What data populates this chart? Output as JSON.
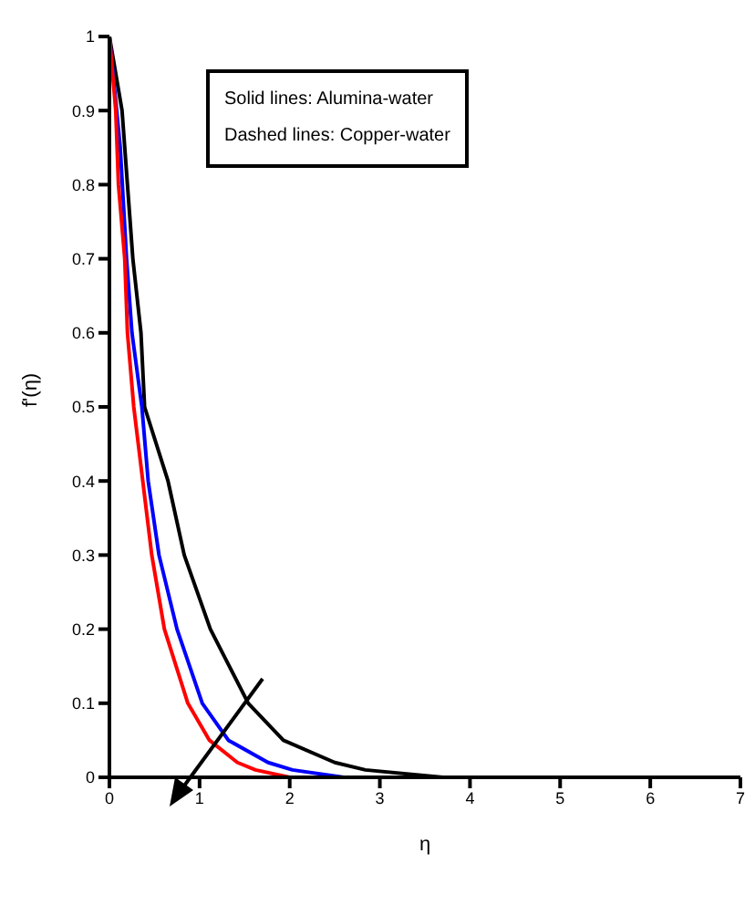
{
  "chart_data": {
    "type": "line",
    "xlabel": "η",
    "ylabel": "f'(η)",
    "annotations": [
      "Solid lines: Alumina-water",
      "Dashed lines: Copper-water"
    ],
    "xlim": [
      0,
      7
    ],
    "xticks": [
      0,
      1,
      2,
      3,
      4,
      5,
      6,
      7
    ],
    "ylim": [
      0,
      1
    ],
    "yticks": [
      0,
      0.1,
      0.2,
      0.3,
      0.4,
      0.5,
      0.6,
      0.7,
      0.8,
      0.9,
      1
    ],
    "marker": "none",
    "line_style": "solid",
    "series": [
      {
        "color": "#000000",
        "x": [
          0,
          0.14,
          0.2,
          0.26,
          0.35,
          0.39,
          0.65,
          0.83,
          1.12,
          1.54,
          1.93,
          2.5,
          2.84,
          3.7,
          7
        ],
        "values": [
          1,
          0.9,
          0.8,
          0.7,
          0.6,
          0.5,
          0.4,
          0.3,
          0.2,
          0.1,
          0.05,
          0.02,
          0.01,
          0,
          0
        ]
      },
      {
        "color": "#0000ff",
        "x": [
          0,
          0.12,
          0.19,
          0.25,
          0.36,
          0.43,
          0.55,
          0.75,
          1.03,
          1.32,
          1.76,
          2.03,
          2.6,
          7
        ],
        "values": [
          1,
          0.85,
          0.7,
          0.6,
          0.5,
          0.4,
          0.3,
          0.2,
          0.1,
          0.05,
          0.02,
          0.01,
          0,
          0
        ]
      },
      {
        "color": "#ff0000",
        "x": [
          0,
          0.07,
          0.1,
          0.17,
          0.2,
          0.27,
          0.37,
          0.47,
          0.61,
          0.87,
          1.11,
          1.42,
          1.62,
          2,
          7
        ],
        "values": [
          1,
          0.9,
          0.8,
          0.7,
          0.6,
          0.5,
          0.4,
          0.3,
          0.2,
          0.1,
          0.05,
          0.02,
          0.01,
          0,
          0
        ]
      }
    ]
  }
}
